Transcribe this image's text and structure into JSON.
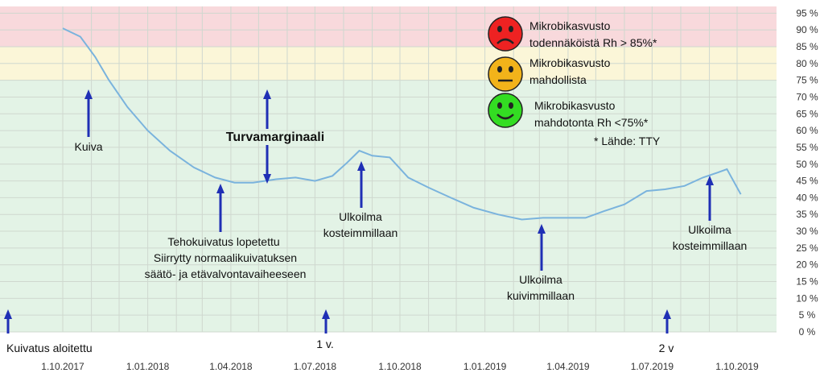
{
  "chart_data": {
    "type": "line",
    "ylim": [
      0,
      95
    ],
    "y_ticks": [
      "0 %",
      "5 %",
      "10 %",
      "15 %",
      "20 %",
      "25 %",
      "30 %",
      "35 %",
      "40 %",
      "45 %",
      "50 %",
      "55 %",
      "60 %",
      "65 %",
      "70 %",
      "75 %",
      "80 %",
      "85 %",
      "90 %",
      "95 %"
    ],
    "x_ticks": [
      "1.10.2017",
      "1.01.2018",
      "1.04.2018",
      "1.07.2018",
      "1.10.2018",
      "1.01.2019",
      "1.04.2019",
      "1.07.2019",
      "1.10.2019"
    ],
    "bands": [
      {
        "from": 85,
        "to": 100,
        "color": "#f8d9dc"
      },
      {
        "from": 75,
        "to": 85,
        "color": "#fbf6d8"
      },
      {
        "from": 0,
        "to": 75,
        "color": "#e3f3e6"
      }
    ],
    "series": [
      {
        "color": "#7ab3dd",
        "x": [
          "2017-10-01",
          "2017-10-20",
          "2017-11-05",
          "2017-11-20",
          "2017-12-10",
          "2018-01-01",
          "2018-01-25",
          "2018-02-20",
          "2018-03-15",
          "2018-04-05",
          "2018-04-25",
          "2018-05-20",
          "2018-06-10",
          "2018-07-01",
          "2018-07-20",
          "2018-08-05",
          "2018-08-18",
          "2018-09-01",
          "2018-09-20",
          "2018-10-10",
          "2018-11-01",
          "2018-11-25",
          "2018-12-20",
          "2019-01-15",
          "2019-02-10",
          "2019-03-05",
          "2019-03-25",
          "2019-04-20",
          "2019-05-10",
          "2019-06-01",
          "2019-06-25",
          "2019-07-15",
          "2019-08-05",
          "2019-08-25",
          "2019-09-10",
          "2019-09-20",
          "2019-10-05"
        ],
        "y": [
          90.5,
          88,
          82,
          75,
          67,
          60,
          54,
          49,
          46,
          44.5,
          44.5,
          45.5,
          46,
          45,
          46.5,
          50.5,
          54,
          52.5,
          52,
          46,
          43,
          40,
          37,
          35,
          33.5,
          34,
          34,
          34,
          36,
          38,
          42,
          42.5,
          43.5,
          46,
          47.5,
          48.5,
          41
        ]
      }
    ]
  },
  "annotations": {
    "kuiva": "Kuiva",
    "turvamarginaali": "Turvamarginaali",
    "tehokuivatus_line1": "Tehokuivatus lopetettu",
    "tehokuivatus_line2": "Siirrytty normaalikuivatuksen",
    "tehokuivatus_line3": "säätö- ja etävalvontavaiheeseen",
    "ulkoilma_kostein_1_line1": "Ulkoilma",
    "ulkoilma_kostein_1_line2": "kosteimmillaan",
    "ulkoilma_kuivin_line1": "Ulkoilma",
    "ulkoilma_kuivin_line2": "kuivimmillaan",
    "ulkoilma_kostein_2_line1": "Ulkoilma",
    "ulkoilma_kostein_2_line2": "kosteimmillaan",
    "kuivatus_aloitettu": "Kuivatus  aloitettu",
    "one_year": "1 v.",
    "two_years": "2 v"
  },
  "legend": [
    {
      "icon": "sad-face-icon",
      "color": "#ee2222",
      "line1": "Mikrobikasvusto",
      "line2": "todennäköistä Rh > 85%*"
    },
    {
      "icon": "neutral-face-icon",
      "color": "#f2b31a",
      "line1": "Mikrobikasvusto",
      "line2": "mahdollista"
    },
    {
      "icon": "happy-face-icon",
      "color": "#33dd22",
      "line1": "Mikrobikasvusto",
      "line2": "mahdotonta Rh <75%*"
    }
  ],
  "source_note": "* Lähde: TTY",
  "colors": {
    "arrow": "#1f2fb5",
    "grid": "#cfd8cf",
    "line": "#7ab3dd"
  }
}
